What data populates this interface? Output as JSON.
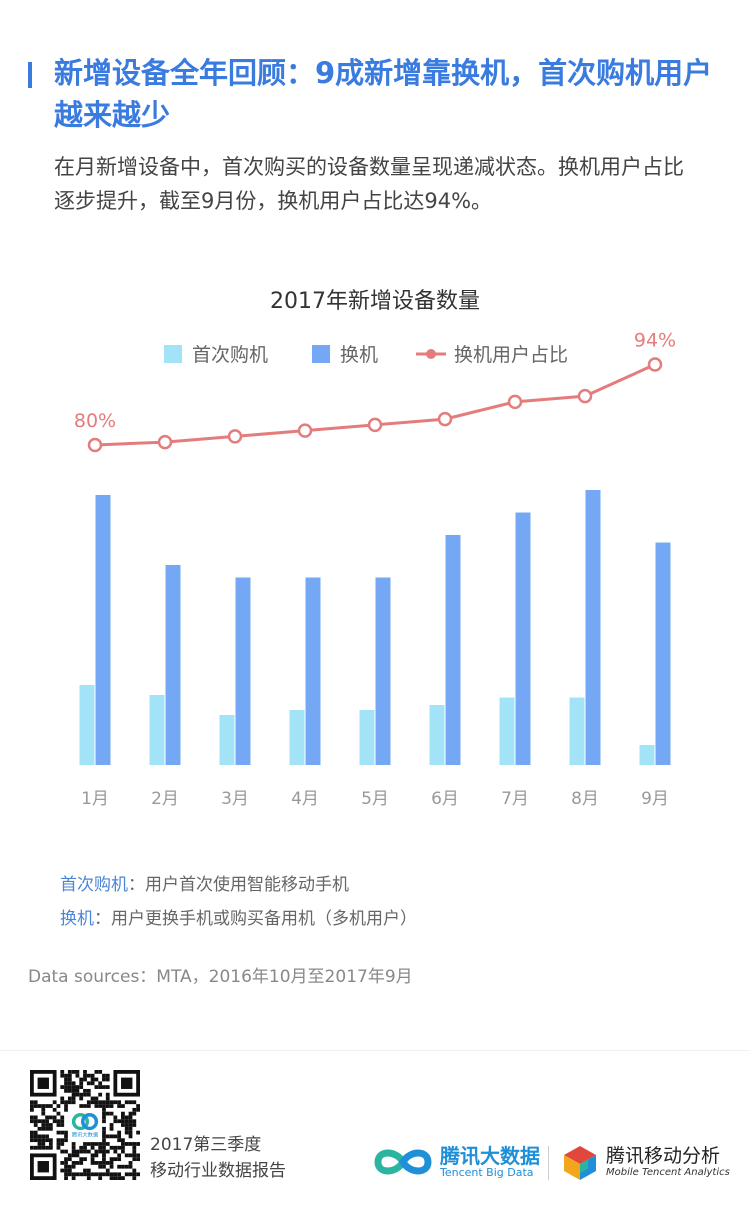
{
  "header": {
    "title": "新增设备全年回顾：9成新增靠换机，首次购机用户越来越少",
    "intro": "在月新增设备中，首次购买的设备数量呈现递减状态。换机用户占比逐步提升，截至9月份，换机用户占比达94%。"
  },
  "chart_data": {
    "type": "bar",
    "title": "2017年新增设备数量",
    "categories": [
      "1月",
      "2月",
      "3月",
      "4月",
      "5月",
      "6月",
      "7月",
      "8月",
      "9月"
    ],
    "series": [
      {
        "name": "首次购机",
        "kind": "bar",
        "color": "#a3e3f8",
        "values": [
          16,
          14,
          10,
          11,
          11,
          12,
          13.5,
          13.5,
          4
        ]
      },
      {
        "name": "换机",
        "kind": "bar",
        "color": "#74a8f5",
        "values": [
          54,
          40,
          37.5,
          37.5,
          37.5,
          46,
          50.5,
          55,
          44.5
        ]
      },
      {
        "name": "换机用户占比",
        "kind": "line",
        "color": "#e57c7c",
        "values": [
          80,
          80.5,
          81.5,
          82.5,
          83.5,
          84.5,
          87.5,
          88.5,
          94
        ]
      }
    ],
    "line_labels": [
      {
        "index": 0,
        "text": "80%"
      },
      {
        "index": 8,
        "text": "94%"
      }
    ],
    "ylim_bars": [
      0,
      56
    ],
    "ylim_line": [
      60,
      100
    ],
    "legend_position": "top-center",
    "grid": false
  },
  "notes": [
    {
      "term": "首次购机",
      "sep": "：",
      "desc": "用户首次使用智能移动手机"
    },
    {
      "term": "换机",
      "sep": "：",
      "desc": "用户更换手机或购买备用机（多机用户）"
    }
  ],
  "source": "Data sources：MTA，2016年10月至2017年9月",
  "footer": {
    "report_line1": "2017第三季度",
    "report_line2": "移动行业数据报告",
    "tbd_name": "腾讯大数据",
    "tbd_en": "Tencent Big Data",
    "mta_name": "腾讯移动分析",
    "mta_en": "Mobile Tencent Analytics",
    "qr_center": "腾讯大数据",
    "colors": {
      "brand_blue": "#1f8fd8",
      "accent": "#3a7be0",
      "teal": "#2bb5a0",
      "red": "#e2473b",
      "orange": "#f3a51c"
    }
  }
}
